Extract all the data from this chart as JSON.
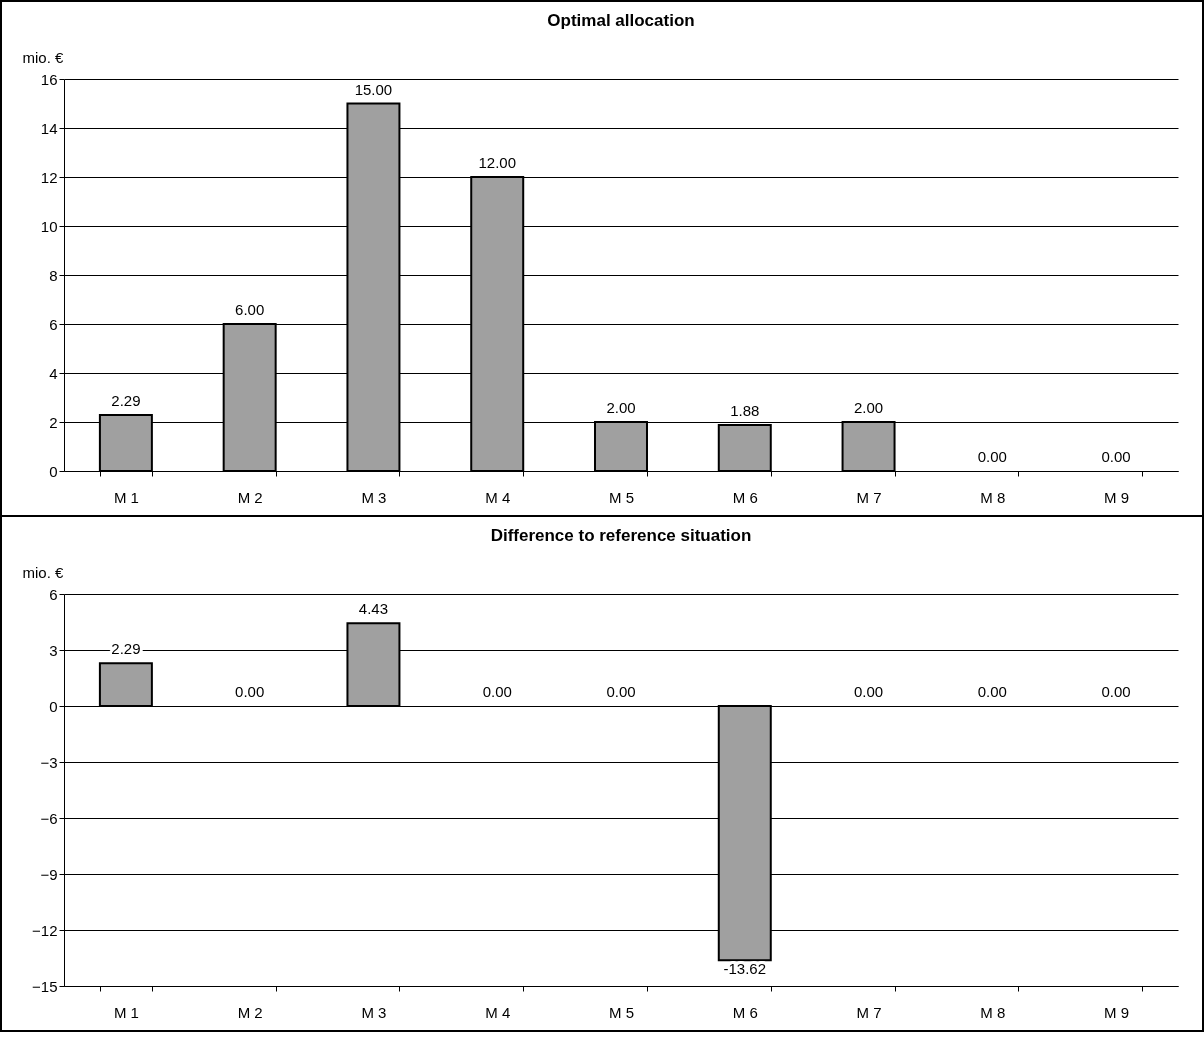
{
  "chart_data": [
    {
      "type": "bar",
      "title": "Optimal allocation",
      "ylabel": "mio. €",
      "categories": [
        "M 1",
        "M 2",
        "M 3",
        "M 4",
        "M 5",
        "M 6",
        "M 7",
        "M 8",
        "M 9"
      ],
      "values": [
        2.29,
        6.0,
        15.0,
        12.0,
        2.0,
        1.88,
        2.0,
        0.0,
        0.0
      ],
      "value_labels": [
        "2.29",
        "6.00",
        "15.00",
        "12.00",
        "2.00",
        "1.88",
        "2.00",
        "0.00",
        "0.00"
      ],
      "color": "#a0a0a0",
      "ylim": [
        0,
        16
      ],
      "yticks": [
        0,
        2,
        4,
        6,
        8,
        10,
        12,
        14,
        16
      ],
      "grid": "y"
    },
    {
      "type": "bar",
      "title": "Difference to reference situation",
      "ylabel": "mio. €",
      "categories": [
        "M 1",
        "M 2",
        "M 3",
        "M 4",
        "M 5",
        "M 6",
        "M 7",
        "M 8",
        "M 9"
      ],
      "values": [
        2.29,
        0.0,
        4.43,
        0.0,
        0.0,
        -13.62,
        0.0,
        0.0,
        0.0
      ],
      "value_labels": [
        "2.29",
        "0.00",
        "4.43",
        "0.00",
        "0.00",
        "-13.62",
        "0.00",
        "0.00",
        "0.00"
      ],
      "color": "#a0a0a0",
      "ylim": [
        -15,
        6
      ],
      "yticks": [
        -15,
        -12,
        -9,
        -6,
        -3,
        0,
        3,
        6
      ],
      "grid": "y"
    }
  ]
}
